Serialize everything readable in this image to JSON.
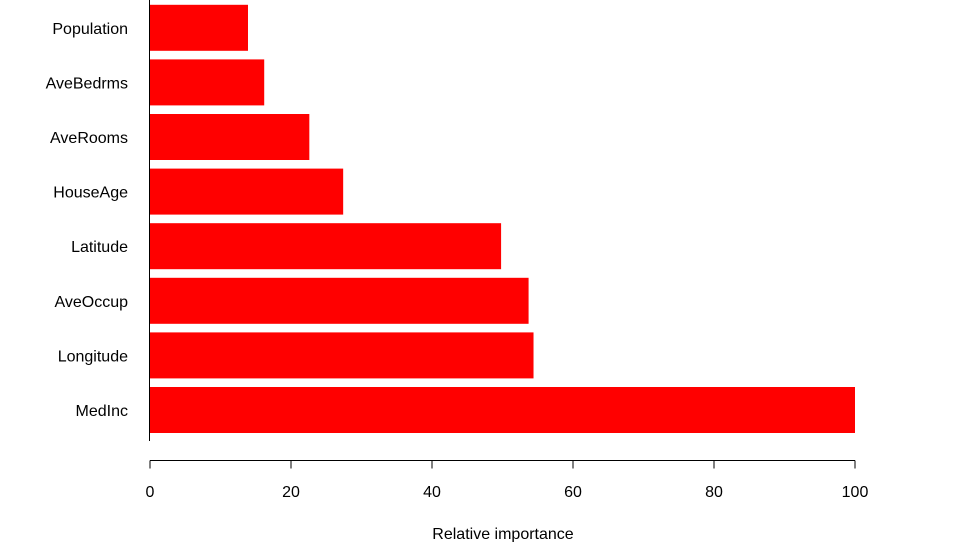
{
  "chart_data": {
    "type": "bar",
    "orientation": "horizontal",
    "categories": [
      "MedInc",
      "Longitude",
      "AveOccup",
      "Latitude",
      "HouseAge",
      "AveRooms",
      "AveBedrms",
      "Population"
    ],
    "values": [
      100,
      54.4,
      53.7,
      49.8,
      27.4,
      22.6,
      16.2,
      13.9
    ],
    "xlabel": "Relative importance",
    "ylabel": "",
    "title": "",
    "xlim": [
      0,
      100
    ],
    "xticks": [
      0,
      20,
      40,
      60,
      80,
      100
    ],
    "grid": false,
    "legend": "none",
    "bar_color": "#ff0000"
  }
}
